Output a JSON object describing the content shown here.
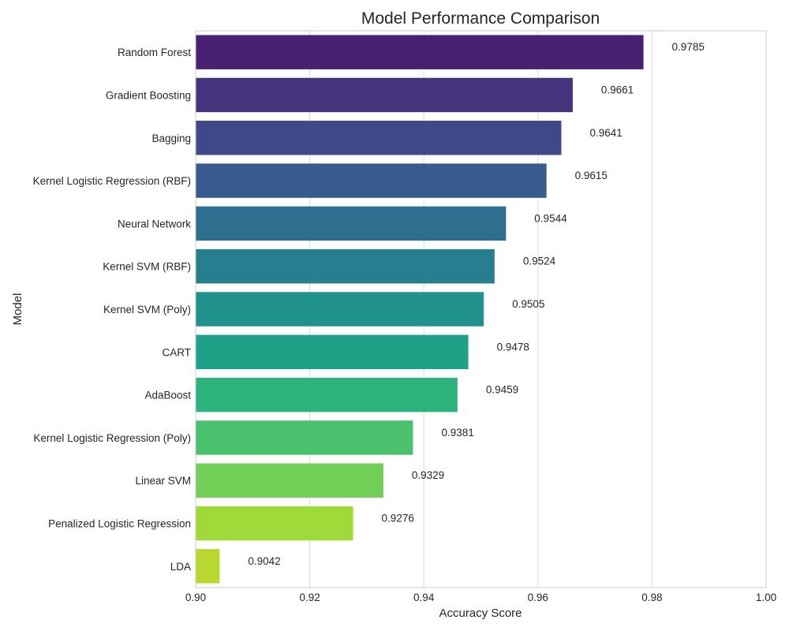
{
  "chart_data": {
    "type": "bar",
    "orientation": "horizontal",
    "title": "Model Performance Comparison",
    "xlabel": "Accuracy Score",
    "ylabel": "Model",
    "xlim": [
      0.9,
      1.0
    ],
    "xticks": [
      "0.90",
      "0.92",
      "0.94",
      "0.96",
      "0.98",
      "1.00"
    ],
    "grid": true,
    "categories": [
      "Random Forest",
      "Gradient Boosting",
      "Bagging",
      "Kernel Logistic Regression (RBF)",
      "Neural Network",
      "Kernel SVM (RBF)",
      "Kernel SVM (Poly)",
      "CART",
      "AdaBoost",
      "Kernel Logistic Regression (Poly)",
      "Linear SVM",
      "Penalized Logistic Regression",
      "LDA"
    ],
    "values": [
      0.9785,
      0.9661,
      0.9641,
      0.9615,
      0.9544,
      0.9524,
      0.9505,
      0.9478,
      0.9459,
      0.9381,
      0.9329,
      0.9276,
      0.9042
    ],
    "value_labels": [
      "0.9785",
      "0.9661",
      "0.9641",
      "0.9615",
      "0.9544",
      "0.9524",
      "0.9505",
      "0.9478",
      "0.9459",
      "0.9381",
      "0.9329",
      "0.9276",
      "0.9042"
    ],
    "colors": [
      "#482173",
      "#46337e",
      "#3f4889",
      "#365c8d",
      "#2e6e8e",
      "#277f8e",
      "#21918c",
      "#1fa187",
      "#2db27d",
      "#4ac16d",
      "#71cf57",
      "#a0da39",
      "#b8d72f"
    ]
  }
}
